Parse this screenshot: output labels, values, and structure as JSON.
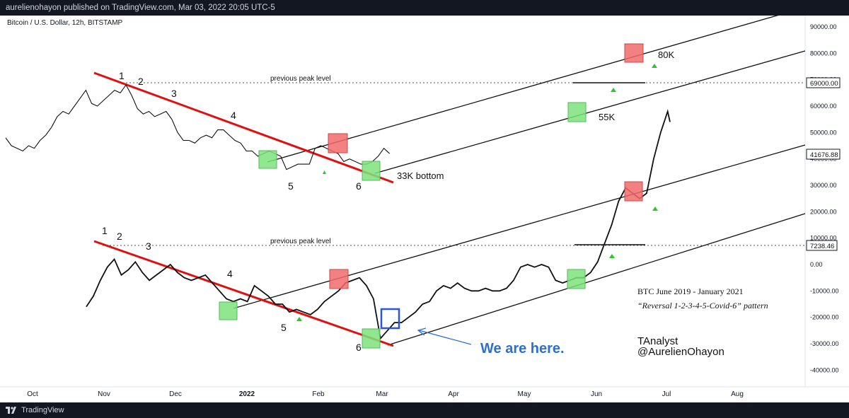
{
  "header": {
    "publisher_line": "aurelienohayon published on TradingView.com, Mar 03, 2022 20:05 UTC-5"
  },
  "symbol": "Bitcoin / U.S. Dollar, 12h, BITSTAMP",
  "footer": {
    "brand": "TradingView"
  },
  "colors": {
    "trendline": "#e01010",
    "green_box": "#7ce37c",
    "red_box": "#f26b6b",
    "blue_box": "#2b57d4",
    "note_blue": "#2b6fd6",
    "marker_green": "#26c926"
  },
  "annotations": {
    "wave_top": [
      "1",
      "2",
      "3",
      "4",
      "5",
      "6"
    ],
    "wave_bottom": [
      "1",
      "2",
      "3",
      "4",
      "5",
      "6"
    ],
    "prev_peak_top": "previous peak level",
    "prev_peak_bottom": "previous peak level",
    "label_33k": "33K bottom",
    "label_55k": "55K",
    "label_80k": "80K",
    "title_line1": "BTC June 2019 - January 2021",
    "title_line2": "“Reversal 1-2-3-4-5-Covid-6” pattern",
    "we_are_here": "We are here.",
    "author1": "TAnalyst",
    "author2": "@AurelienOhayon"
  },
  "chart_data": {
    "type": "line",
    "title": "Bitcoin / U.S. Dollar, 12h, BITSTAMP",
    "xlabel": "",
    "ylabel": "",
    "y_axis_ticks": [
      "90000.00",
      "80000.00",
      "70000.00",
      "60000.00",
      "50000.00",
      "40000.00",
      "30000.00",
      "20000.00",
      "10000.00",
      "0.00",
      "-10000.00",
      "-20000.00",
      "-30000.00",
      "-40000.00"
    ],
    "x_axis_ticks": [
      "Oct",
      "Nov",
      "Dec",
      "2022",
      "Feb",
      "Mar",
      "Apr",
      "May",
      "Jun",
      "Jul",
      "Aug"
    ],
    "price_labels": {
      "top_peak": "69000.00",
      "current": "41676.88",
      "bottom_peak": "7238.46"
    },
    "series": [
      {
        "name": "",
        "period": "2021-2022",
        "points": [
          [
            0,
            48000
          ],
          [
            3,
            45000
          ],
          [
            6,
            44000
          ],
          [
            9,
            43000
          ],
          [
            12,
            45000
          ],
          [
            15,
            44000
          ],
          [
            18,
            47000
          ],
          [
            21,
            49000
          ],
          [
            24,
            52000
          ],
          [
            27,
            56000
          ],
          [
            30,
            58000
          ],
          [
            33,
            57000
          ],
          [
            36,
            60000
          ],
          [
            39,
            63000
          ],
          [
            42,
            66000
          ],
          [
            45,
            61000
          ],
          [
            48,
            60000
          ],
          [
            51,
            62000
          ],
          [
            54,
            64000
          ],
          [
            57,
            66000
          ],
          [
            60,
            65000
          ],
          [
            63,
            68000
          ],
          [
            66,
            64000
          ],
          [
            69,
            59000
          ],
          [
            72,
            57000
          ],
          [
            75,
            58000
          ],
          [
            78,
            56000
          ],
          [
            81,
            57000
          ],
          [
            84,
            58000
          ],
          [
            87,
            55000
          ],
          [
            90,
            50000
          ],
          [
            93,
            47000
          ],
          [
            96,
            47000
          ],
          [
            99,
            46000
          ],
          [
            102,
            48000
          ],
          [
            105,
            49000
          ],
          [
            108,
            48000
          ],
          [
            111,
            51000
          ],
          [
            114,
            51000
          ],
          [
            117,
            49000
          ],
          [
            120,
            47000
          ],
          [
            123,
            46000
          ],
          [
            126,
            43000
          ],
          [
            129,
            43000
          ],
          [
            132,
            41000
          ],
          [
            135,
            42000
          ],
          [
            138,
            43000
          ],
          [
            141,
            42000
          ],
          [
            144,
            41000
          ],
          [
            147,
            36000
          ],
          [
            150,
            37000
          ],
          [
            153,
            38000
          ],
          [
            156,
            38000
          ],
          [
            159,
            38000
          ],
          [
            162,
            44000
          ],
          [
            165,
            45000
          ],
          [
            168,
            44000
          ],
          [
            171,
            43000
          ],
          [
            174,
            42000
          ],
          [
            177,
            39000
          ],
          [
            180,
            40000
          ],
          [
            183,
            39000
          ],
          [
            186,
            38000
          ],
          [
            189,
            38000
          ],
          [
            192,
            39000
          ],
          [
            195,
            41000
          ],
          [
            198,
            44000
          ],
          [
            201,
            42000
          ]
        ]
      },
      {
        "name": "",
        "period": "2019-2021",
        "points": [
          [
            0,
            -16000
          ],
          [
            3,
            -12000
          ],
          [
            6,
            -6000
          ],
          [
            9,
            -1000
          ],
          [
            12,
            2000
          ],
          [
            15,
            -4000
          ],
          [
            18,
            -2000
          ],
          [
            21,
            1000
          ],
          [
            24,
            -3000
          ],
          [
            27,
            -6000
          ],
          [
            30,
            -4000
          ],
          [
            33,
            -2000
          ],
          [
            36,
            0
          ],
          [
            39,
            -3000
          ],
          [
            42,
            -5000
          ],
          [
            45,
            -6000
          ],
          [
            48,
            -5000
          ],
          [
            51,
            -4000
          ],
          [
            54,
            -7000
          ],
          [
            57,
            -10000
          ],
          [
            60,
            -13000
          ],
          [
            63,
            -14000
          ],
          [
            66,
            -13000
          ],
          [
            69,
            -14000
          ],
          [
            72,
            -8000
          ],
          [
            75,
            -10000
          ],
          [
            78,
            -12000
          ],
          [
            81,
            -15000
          ],
          [
            84,
            -15000
          ],
          [
            87,
            -18000
          ],
          [
            90,
            -17000
          ],
          [
            93,
            -18000
          ],
          [
            96,
            -19000
          ],
          [
            99,
            -17000
          ],
          [
            102,
            -14000
          ],
          [
            105,
            -12000
          ],
          [
            108,
            -10000
          ],
          [
            111,
            -7000
          ],
          [
            114,
            -6000
          ],
          [
            117,
            -5000
          ],
          [
            120,
            -8000
          ],
          [
            123,
            -13000
          ],
          [
            126,
            -28000
          ],
          [
            129,
            -25000
          ],
          [
            132,
            -22000
          ],
          [
            135,
            -22000
          ],
          [
            138,
            -20000
          ],
          [
            141,
            -18000
          ],
          [
            144,
            -15000
          ],
          [
            147,
            -14000
          ],
          [
            150,
            -10000
          ],
          [
            153,
            -8000
          ],
          [
            156,
            -9000
          ],
          [
            159,
            -7000
          ],
          [
            162,
            -9000
          ],
          [
            165,
            -10000
          ],
          [
            168,
            -10000
          ],
          [
            171,
            -9000
          ],
          [
            174,
            -10000
          ],
          [
            177,
            -10000
          ],
          [
            180,
            -9000
          ],
          [
            183,
            -6000
          ],
          [
            186,
            -1000
          ],
          [
            189,
            0
          ],
          [
            192,
            -1000
          ],
          [
            195,
            0
          ],
          [
            198,
            -1000
          ],
          [
            201,
            -6000
          ],
          [
            204,
            -7000
          ],
          [
            207,
            -6000
          ],
          [
            210,
            -5000
          ],
          [
            213,
            -5000
          ],
          [
            216,
            -3000
          ],
          [
            219,
            1000
          ],
          [
            222,
            8000
          ],
          [
            225,
            15000
          ],
          [
            228,
            24000
          ],
          [
            231,
            29000
          ],
          [
            234,
            27000
          ],
          [
            237,
            25000
          ],
          [
            240,
            27000
          ],
          [
            243,
            40000
          ],
          [
            246,
            50000
          ],
          [
            249,
            58000
          ],
          [
            250,
            54000
          ]
        ]
      }
    ]
  }
}
